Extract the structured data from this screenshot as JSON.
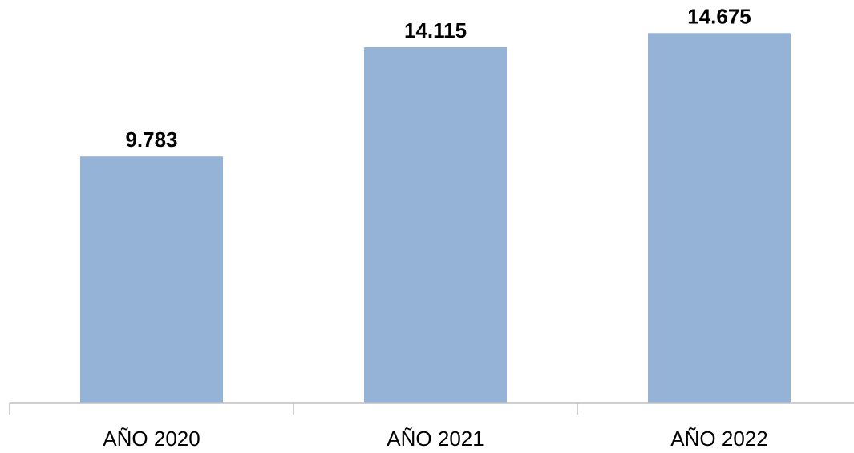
{
  "chart_data": {
    "type": "bar",
    "categories": [
      "AÑO 2020",
      "AÑO 2021",
      "AÑO 2022"
    ],
    "values": [
      9783,
      14115,
      14675
    ],
    "value_labels": [
      "9.783",
      "14.115",
      "14.675"
    ],
    "title": "",
    "xlabel": "",
    "ylabel": "",
    "ylim": [
      0,
      16000
    ],
    "grid": false,
    "legend": "none",
    "colors": {
      "bar": "#95b3d7",
      "axis": "#bfbfbf",
      "text": "#000000"
    }
  }
}
